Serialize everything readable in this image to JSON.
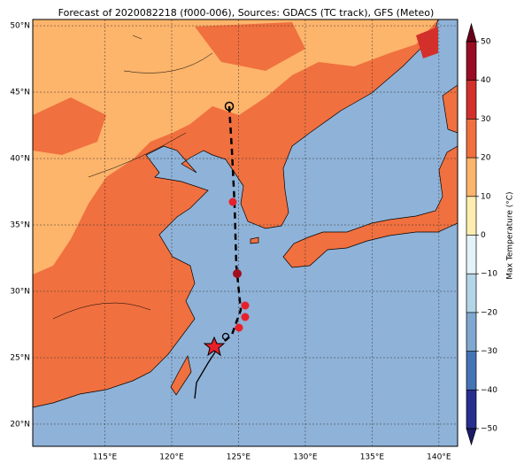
{
  "title": "Forecast of 2020082218 (f000-006), Sources: GDACS (TC track), GFS (Meteo)",
  "map": {
    "lonlim": [
      109.6,
      141.4
    ],
    "latlim": [
      18.33,
      50.47
    ],
    "grid": true,
    "lonticks": [
      {
        "value": 115,
        "label": "115°E"
      },
      {
        "value": 120,
        "label": "120°E"
      },
      {
        "value": 125,
        "label": "125°E"
      },
      {
        "value": 130,
        "label": "130°E"
      },
      {
        "value": 135,
        "label": "135°E"
      },
      {
        "value": 140,
        "label": "140°E"
      }
    ],
    "latticks": [
      {
        "value": 50,
        "label": "50°N"
      },
      {
        "value": 45,
        "label": "45°N"
      },
      {
        "value": 40,
        "label": "40°N"
      },
      {
        "value": 35,
        "label": "35°N"
      },
      {
        "value": 30,
        "label": "30°N"
      },
      {
        "value": 25,
        "label": "25°N"
      },
      {
        "value": 20,
        "label": "20°N"
      }
    ]
  },
  "colorbar": {
    "label": "Max Temperature (°C)",
    "lim": [
      -50,
      50
    ],
    "ticks": [
      {
        "value": -50,
        "label": "−50"
      },
      {
        "value": -40,
        "label": "−40"
      },
      {
        "value": -30,
        "label": "−30"
      },
      {
        "value": -20,
        "label": "−20"
      },
      {
        "value": -10,
        "label": "−10"
      },
      0,
      10,
      20,
      30,
      40,
      50
    ],
    "colors": [
      "#262f8f",
      "#4574b5",
      "#7fa7d0",
      "#b3d5e8",
      "#e4f3f7",
      "#fdeeb0",
      "#fdb46b",
      "#f0703f",
      "#d3302b",
      "#9a0c24"
    ],
    "extend_colors": [
      "#1b1b6b",
      "#6a0018"
    ]
  }
}
